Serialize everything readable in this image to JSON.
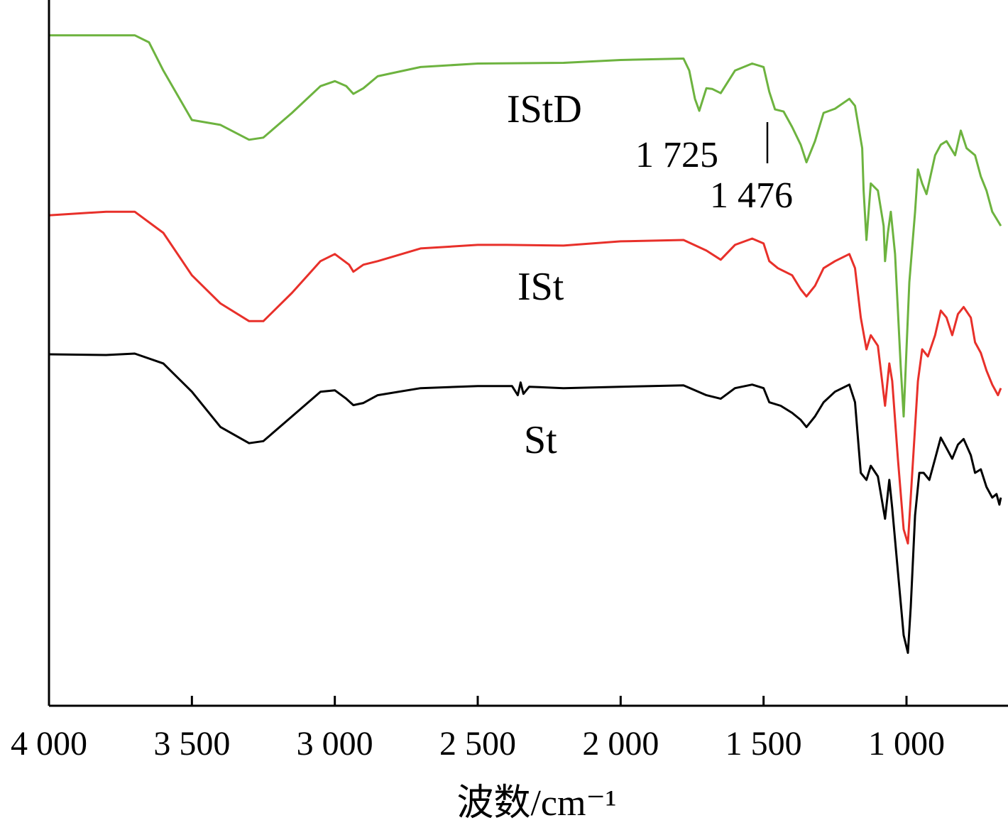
{
  "chart_data": {
    "type": "line",
    "title": "",
    "xlabel": "波数/cm⁻¹",
    "ylabel": "",
    "xlim": [
      4000,
      670
    ],
    "x_reversed": true,
    "x_ticks": [
      4000,
      3500,
      3000,
      2500,
      2000,
      1500,
      1000
    ],
    "x_tick_labels": [
      "4 000",
      "3 500",
      "3 000",
      "2 500",
      "2 000",
      "1 500",
      "1 000"
    ],
    "y_ticks": [],
    "grid": false,
    "legend": "none",
    "y_unit": "arbitrary transmittance (offset traces, 0 = bottom of axes, 100 = top)",
    "series": [
      {
        "name": "IStD",
        "color": "#6db33f",
        "points": [
          [
            4000,
            95.0
          ],
          [
            3700,
            95.0
          ],
          [
            3650,
            94.0
          ],
          [
            3600,
            90.0
          ],
          [
            3500,
            83.0
          ],
          [
            3400,
            82.3
          ],
          [
            3300,
            80.2
          ],
          [
            3250,
            80.5
          ],
          [
            3150,
            84.0
          ],
          [
            3050,
            87.8
          ],
          [
            3000,
            88.5
          ],
          [
            2960,
            87.8
          ],
          [
            2935,
            86.7
          ],
          [
            2900,
            87.5
          ],
          [
            2850,
            89.2
          ],
          [
            2700,
            90.5
          ],
          [
            2500,
            91.0
          ],
          [
            2200,
            91.1
          ],
          [
            2000,
            91.5
          ],
          [
            1780,
            91.7
          ],
          [
            1760,
            90.0
          ],
          [
            1740,
            86.0
          ],
          [
            1725,
            84.3
          ],
          [
            1700,
            87.5
          ],
          [
            1680,
            87.4
          ],
          [
            1650,
            86.8
          ],
          [
            1600,
            90.0
          ],
          [
            1540,
            91.0
          ],
          [
            1500,
            90.5
          ],
          [
            1480,
            87.0
          ],
          [
            1460,
            84.5
          ],
          [
            1430,
            84.2
          ],
          [
            1400,
            82.0
          ],
          [
            1370,
            79.5
          ],
          [
            1350,
            77.0
          ],
          [
            1320,
            80.0
          ],
          [
            1290,
            84.0
          ],
          [
            1250,
            84.6
          ],
          [
            1200,
            86.0
          ],
          [
            1180,
            85.0
          ],
          [
            1155,
            79.0
          ],
          [
            1150,
            73.0
          ],
          [
            1140,
            66.0
          ],
          [
            1125,
            74.0
          ],
          [
            1100,
            73.0
          ],
          [
            1080,
            68.0
          ],
          [
            1075,
            63.0
          ],
          [
            1065,
            67.0
          ],
          [
            1055,
            70.0
          ],
          [
            1040,
            64.0
          ],
          [
            1020,
            48.0
          ],
          [
            1010,
            41.0
          ],
          [
            990,
            60.0
          ],
          [
            970,
            70.0
          ],
          [
            960,
            76.0
          ],
          [
            945,
            74.0
          ],
          [
            930,
            72.5
          ],
          [
            900,
            78.0
          ],
          [
            880,
            79.5
          ],
          [
            860,
            80.0
          ],
          [
            830,
            78.0
          ],
          [
            810,
            81.5
          ],
          [
            790,
            79.0
          ],
          [
            760,
            78.0
          ],
          [
            740,
            75.0
          ],
          [
            720,
            73.0
          ],
          [
            700,
            70.0
          ],
          [
            670,
            68.0
          ]
        ]
      },
      {
        "name": "ISt",
        "color": "#e8302a",
        "points": [
          [
            4000,
            69.5
          ],
          [
            3800,
            70.0
          ],
          [
            3700,
            70.0
          ],
          [
            3600,
            67.0
          ],
          [
            3500,
            61.0
          ],
          [
            3400,
            57.0
          ],
          [
            3300,
            54.5
          ],
          [
            3250,
            54.5
          ],
          [
            3150,
            58.5
          ],
          [
            3050,
            63.0
          ],
          [
            3000,
            64.0
          ],
          [
            2950,
            62.5
          ],
          [
            2935,
            61.5
          ],
          [
            2900,
            62.5
          ],
          [
            2850,
            63.0
          ],
          [
            2700,
            64.8
          ],
          [
            2500,
            65.3
          ],
          [
            2400,
            65.3
          ],
          [
            2200,
            65.2
          ],
          [
            2000,
            65.8
          ],
          [
            1780,
            66.0
          ],
          [
            1700,
            64.5
          ],
          [
            1650,
            63.2
          ],
          [
            1600,
            65.3
          ],
          [
            1540,
            66.2
          ],
          [
            1500,
            65.5
          ],
          [
            1480,
            63.0
          ],
          [
            1450,
            62.0
          ],
          [
            1400,
            61.0
          ],
          [
            1370,
            59.0
          ],
          [
            1350,
            58.0
          ],
          [
            1320,
            59.5
          ],
          [
            1290,
            62.0
          ],
          [
            1250,
            63.0
          ],
          [
            1200,
            64.0
          ],
          [
            1180,
            62.0
          ],
          [
            1160,
            55.0
          ],
          [
            1140,
            50.5
          ],
          [
            1125,
            52.5
          ],
          [
            1100,
            51.0
          ],
          [
            1075,
            42.5
          ],
          [
            1060,
            48.5
          ],
          [
            1050,
            46.0
          ],
          [
            1030,
            35.0
          ],
          [
            1010,
            25.0
          ],
          [
            995,
            23.0
          ],
          [
            980,
            33.0
          ],
          [
            960,
            46.0
          ],
          [
            945,
            50.5
          ],
          [
            925,
            49.5
          ],
          [
            900,
            52.5
          ],
          [
            880,
            56.0
          ],
          [
            860,
            55.0
          ],
          [
            840,
            52.5
          ],
          [
            820,
            55.5
          ],
          [
            800,
            56.5
          ],
          [
            775,
            55.0
          ],
          [
            760,
            51.5
          ],
          [
            740,
            50.0
          ],
          [
            720,
            47.5
          ],
          [
            700,
            45.5
          ],
          [
            680,
            44.0
          ],
          [
            670,
            45.0
          ]
        ]
      },
      {
        "name": "St",
        "color": "#000000",
        "points": [
          [
            4000,
            49.8
          ],
          [
            3800,
            49.7
          ],
          [
            3700,
            49.9
          ],
          [
            3600,
            48.5
          ],
          [
            3500,
            44.5
          ],
          [
            3400,
            39.5
          ],
          [
            3300,
            37.2
          ],
          [
            3250,
            37.5
          ],
          [
            3150,
            41.0
          ],
          [
            3050,
            44.5
          ],
          [
            3000,
            44.7
          ],
          [
            2960,
            43.5
          ],
          [
            2935,
            42.6
          ],
          [
            2900,
            42.9
          ],
          [
            2850,
            44.0
          ],
          [
            2700,
            45.0
          ],
          [
            2500,
            45.3
          ],
          [
            2380,
            45.3
          ],
          [
            2360,
            44.0
          ],
          [
            2350,
            45.8
          ],
          [
            2340,
            44.2
          ],
          [
            2320,
            45.2
          ],
          [
            2200,
            45.0
          ],
          [
            2000,
            45.2
          ],
          [
            1780,
            45.4
          ],
          [
            1700,
            44.0
          ],
          [
            1650,
            43.5
          ],
          [
            1600,
            45.0
          ],
          [
            1540,
            45.5
          ],
          [
            1500,
            45.0
          ],
          [
            1480,
            43.0
          ],
          [
            1440,
            42.5
          ],
          [
            1400,
            41.5
          ],
          [
            1370,
            40.5
          ],
          [
            1350,
            39.5
          ],
          [
            1320,
            41.0
          ],
          [
            1290,
            43.0
          ],
          [
            1250,
            44.5
          ],
          [
            1200,
            45.5
          ],
          [
            1180,
            43.0
          ],
          [
            1160,
            33.0
          ],
          [
            1140,
            32.0
          ],
          [
            1125,
            34.0
          ],
          [
            1100,
            32.5
          ],
          [
            1075,
            26.5
          ],
          [
            1060,
            32.0
          ],
          [
            1050,
            28.0
          ],
          [
            1030,
            19.0
          ],
          [
            1010,
            10.0
          ],
          [
            995,
            7.5
          ],
          [
            985,
            14.0
          ],
          [
            970,
            27.0
          ],
          [
            955,
            33.0
          ],
          [
            940,
            33.0
          ],
          [
            920,
            32.0
          ],
          [
            900,
            35.0
          ],
          [
            880,
            38.0
          ],
          [
            860,
            36.5
          ],
          [
            840,
            35.0
          ],
          [
            820,
            37.0
          ],
          [
            800,
            37.8
          ],
          [
            775,
            35.5
          ],
          [
            760,
            33.0
          ],
          [
            740,
            33.5
          ],
          [
            720,
            31.0
          ],
          [
            700,
            29.5
          ],
          [
            685,
            30.0
          ],
          [
            675,
            28.5
          ],
          [
            670,
            29.5
          ]
        ]
      }
    ],
    "series_labels": [
      "IStD",
      "ISt",
      "St"
    ],
    "annotations": [
      "1 725",
      "1 476"
    ]
  }
}
